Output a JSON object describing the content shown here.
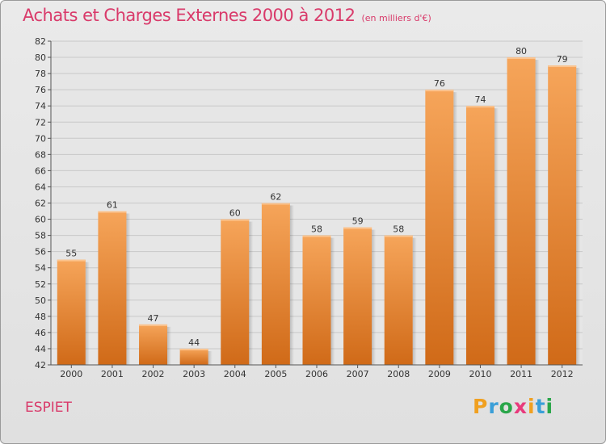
{
  "title": "Achats et Charges Externes 2000 à 2012",
  "subtitle": "(en milliers d'€)",
  "commune": "ESPIET",
  "logo_text": "Proxiti",
  "colors": {
    "title": "#d93a6a",
    "bar_top": "#f6a55a",
    "bar_bottom": "#d06a18"
  },
  "chart_data": {
    "type": "bar",
    "title": "Achats et Charges Externes 2000 à 2012",
    "subtitle": "(en milliers d'€)",
    "categories": [
      "2000",
      "2001",
      "2002",
      "2003",
      "2004",
      "2005",
      "2006",
      "2007",
      "2008",
      "2009",
      "2010",
      "2011",
      "2012"
    ],
    "values": [
      55,
      61,
      47,
      44,
      60,
      62,
      58,
      59,
      58,
      76,
      74,
      80,
      79
    ],
    "data_labels": [
      "55",
      "61",
      "47",
      "44",
      "60",
      "62",
      "58",
      "59",
      "58",
      "76",
      "74",
      "80",
      "79"
    ],
    "ylim": [
      42,
      82
    ],
    "yticks": [
      42,
      44,
      46,
      48,
      50,
      52,
      54,
      56,
      58,
      60,
      62,
      64,
      66,
      68,
      70,
      72,
      74,
      76,
      78,
      80,
      82
    ],
    "grid": "horizontal",
    "legend": "none"
  }
}
